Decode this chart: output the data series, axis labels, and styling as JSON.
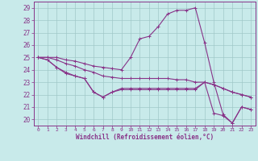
{
  "xlabel": "Windchill (Refroidissement éolien,°C)",
  "xlim": [
    -0.5,
    23.5
  ],
  "ylim": [
    19.5,
    29.5
  ],
  "yticks": [
    20,
    21,
    22,
    23,
    24,
    25,
    26,
    27,
    28,
    29
  ],
  "xticks": [
    0,
    1,
    2,
    3,
    4,
    5,
    6,
    7,
    8,
    9,
    10,
    11,
    12,
    13,
    14,
    15,
    16,
    17,
    18,
    19,
    20,
    21,
    22,
    23
  ],
  "background_color": "#c8eaea",
  "grid_color": "#a0c8c8",
  "line_color": "#883388",
  "series": [
    [
      25.0,
      24.8,
      24.2,
      23.8,
      23.5,
      23.3,
      22.2,
      21.8,
      22.2,
      22.4,
      22.4,
      22.4,
      22.4,
      22.4,
      22.4,
      22.4,
      22.4,
      22.4,
      23.0,
      22.8,
      22.5,
      22.2,
      22.0,
      21.8
    ],
    [
      25.0,
      24.8,
      24.2,
      23.7,
      23.5,
      23.3,
      22.2,
      21.8,
      22.2,
      22.5,
      22.5,
      22.5,
      22.5,
      22.5,
      22.5,
      22.5,
      22.5,
      22.5,
      23.0,
      20.5,
      20.3,
      19.7,
      21.0,
      20.8
    ],
    [
      25.0,
      25.0,
      24.8,
      24.5,
      24.3,
      24.0,
      23.8,
      23.5,
      23.4,
      23.3,
      23.3,
      23.3,
      23.3,
      23.3,
      23.3,
      23.2,
      23.2,
      23.0,
      23.0,
      22.8,
      22.5,
      22.2,
      22.0,
      21.8
    ],
    [
      25.0,
      25.0,
      25.0,
      24.8,
      24.7,
      24.5,
      24.3,
      24.2,
      24.1,
      24.0,
      25.0,
      26.5,
      26.7,
      27.5,
      28.5,
      28.8,
      28.8,
      29.0,
      26.2,
      23.0,
      20.4,
      19.7,
      21.0,
      20.8
    ]
  ]
}
